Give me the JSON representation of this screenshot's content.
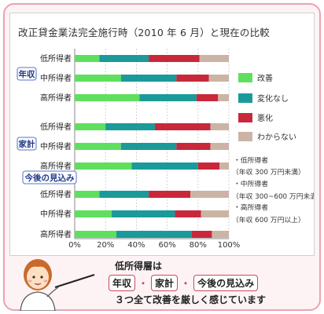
{
  "title": "改正貸金業法完全施行時（2010 年 6 月）と現在の比較",
  "colors": {
    "improve": "#5ee05e",
    "nochange": "#1a9a9a",
    "worse": "#c8283a",
    "unknown": "#cbb4a6",
    "group_label_border": "#7a8fd0",
    "group_label_text": "#1f3a8a"
  },
  "chart_data": {
    "type": "bar",
    "orientation": "horizontal",
    "stacked": true,
    "x_axis": {
      "min": 0,
      "max": 100,
      "ticks": [
        "0%",
        "20%",
        "40%",
        "60%",
        "80%",
        "100%"
      ]
    },
    "grid": true,
    "legend": {
      "placement": "right",
      "entries": [
        {
          "key": "improve",
          "label": "改善"
        },
        {
          "key": "nochange",
          "label": "変化なし"
        },
        {
          "key": "worse",
          "label": "悪化"
        },
        {
          "key": "unknown",
          "label": "わからない"
        }
      ]
    },
    "groups": [
      {
        "label": "年収",
        "rows": [
          {
            "label": "低所得者",
            "values": [
              16,
              32,
              33,
              19
            ]
          },
          {
            "label": "中所得者",
            "values": [
              30,
              36,
              21,
              13
            ]
          },
          {
            "label": "高所得者",
            "values": [
              42,
              37,
              14,
              7
            ]
          }
        ]
      },
      {
        "label": "家計",
        "rows": [
          {
            "label": "低所得者",
            "values": [
              20,
              32,
              36,
              12
            ]
          },
          {
            "label": "中所得者",
            "values": [
              30,
              36,
              22,
              12
            ]
          },
          {
            "label": "高所得者",
            "values": [
              37,
              43,
              14,
              6
            ]
          }
        ]
      },
      {
        "label": "今後の見込み",
        "rows": [
          {
            "label": "低所得者",
            "values": [
              16,
              32,
              27,
              25
            ]
          },
          {
            "label": "中所得者",
            "values": [
              24,
              41,
              17,
              18
            ]
          },
          {
            "label": "高所得者",
            "values": [
              27,
              49,
              13,
              11
            ]
          }
        ]
      }
    ]
  },
  "income_notes": [
    "・低所得者",
    "（年収 300 万円未満）",
    "・中所得者",
    "（年収 300~600 万円未満）",
    "・高所得者",
    "（年収 600 万円以上）"
  ],
  "caption": {
    "line1": "低所得層は",
    "tags": [
      "年収",
      "家計",
      "今後の見込み"
    ],
    "separator": "・",
    "line3": "３つ全て改善を厳しく感じています"
  }
}
